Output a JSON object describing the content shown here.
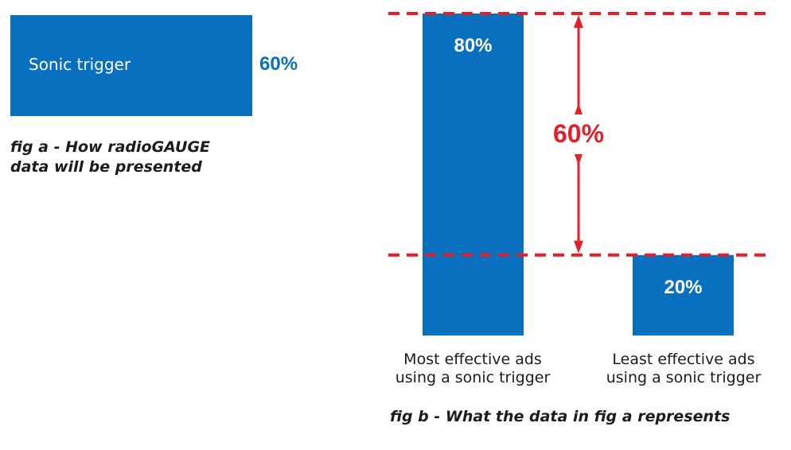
{
  "colors": {
    "bar": "#0870bf",
    "accent": "#e2202b",
    "text": "#1c1c1c"
  },
  "fig_a": {
    "bar_label": "Sonic trigger",
    "value_label": "60%",
    "caption_line1": "fig a - How radioGAUGE",
    "caption_line2": "data will be presented"
  },
  "fig_b": {
    "caption": "fig b - What the data in fig a represents",
    "difference_label": "60%"
  },
  "chart_data": [
    {
      "type": "bar",
      "orientation": "horizontal",
      "categories": [
        "Sonic trigger"
      ],
      "values": [
        60
      ],
      "data_labels": [
        "60%"
      ],
      "title": "",
      "caption": "fig a - How radioGAUGE data will be presented",
      "xlabel": "",
      "ylabel": "",
      "grid": false
    },
    {
      "type": "bar",
      "orientation": "vertical",
      "categories": [
        "Most effective ads using a sonic trigger",
        "Least effective ads using a sonic trigger"
      ],
      "category_lines": [
        [
          "Most effective ads",
          "using a sonic trigger"
        ],
        [
          "Least effective ads",
          "using a sonic trigger"
        ]
      ],
      "values": [
        80,
        20
      ],
      "data_labels": [
        "80%",
        "20%"
      ],
      "reference_lines": [
        80,
        20
      ],
      "annotations": [
        {
          "text": "60%",
          "between": [
            20,
            80
          ]
        }
      ],
      "title": "",
      "caption": "fig b - What the data in fig a represents",
      "xlabel": "",
      "ylabel": "",
      "ylim": [
        0,
        80
      ],
      "grid": false
    }
  ]
}
